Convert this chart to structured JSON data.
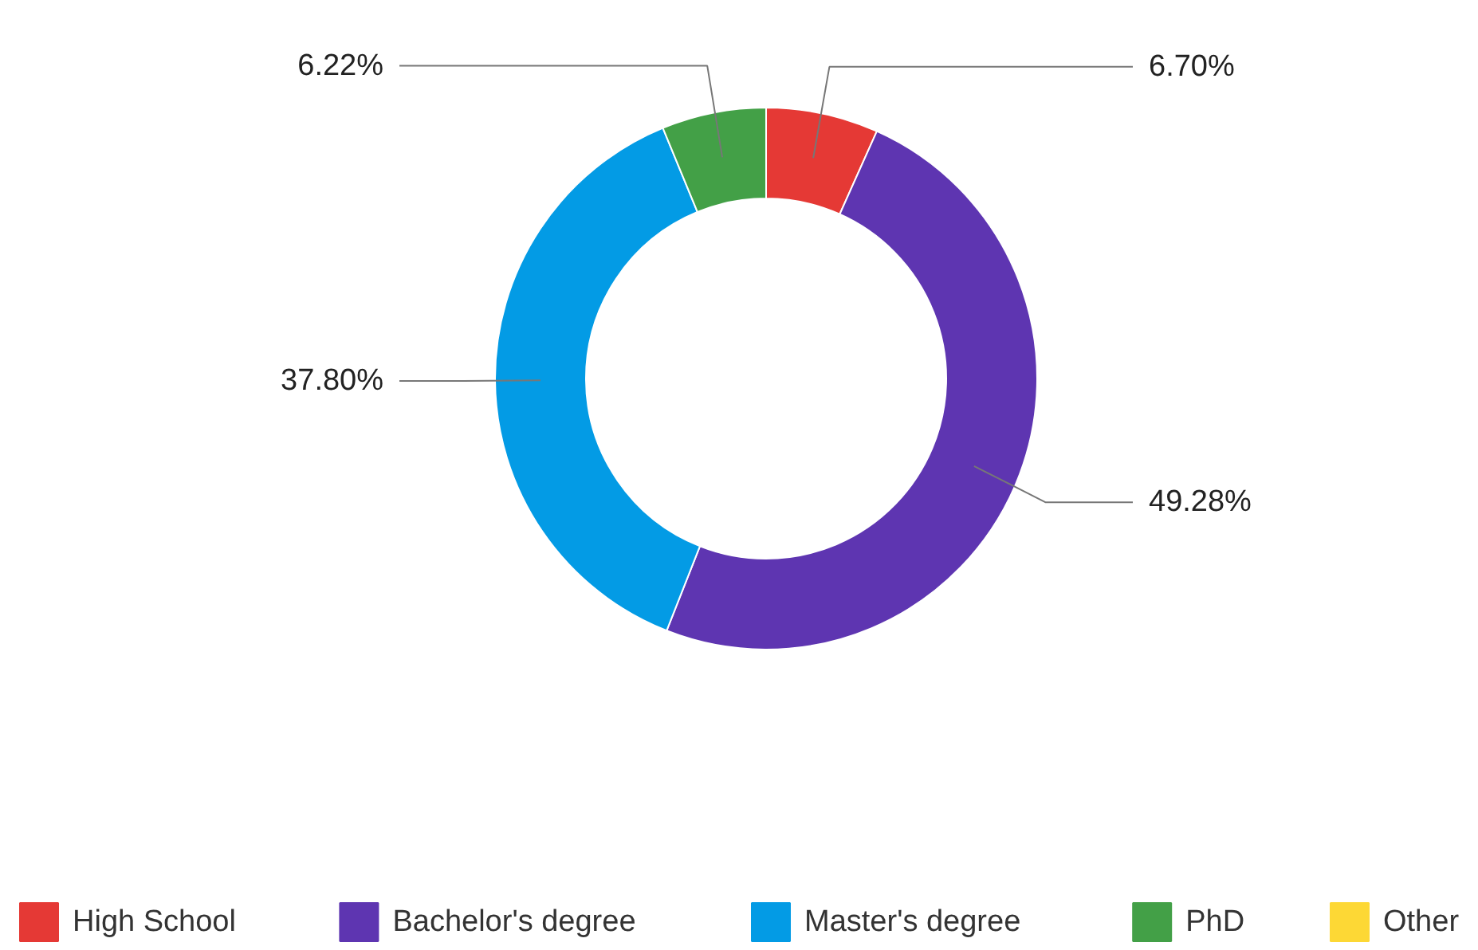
{
  "chart_data": {
    "type": "donut",
    "categories": [
      "High School",
      "Bachelor's degree",
      "Master's degree",
      "PhD",
      "Other"
    ],
    "values": [
      6.7,
      49.28,
      37.8,
      6.22,
      0
    ],
    "colors": [
      "#e53935",
      "#5e35b1",
      "#039be5",
      "#43a047",
      "#fdd835"
    ],
    "value_labels": [
      "6.70%",
      "49.28%",
      "37.80%",
      "6.22%",
      null
    ],
    "legend": "bottom"
  }
}
